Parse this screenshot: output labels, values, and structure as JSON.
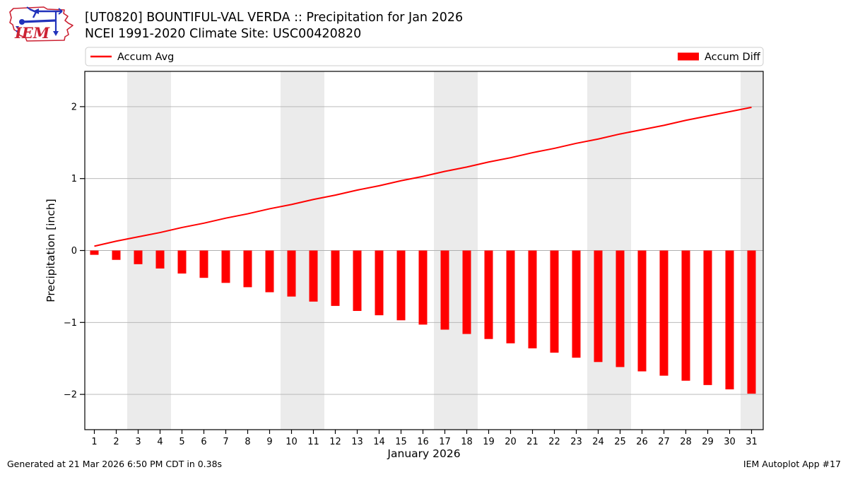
{
  "header": {
    "title": "[UT0820] BOUNTIFUL-VAL VERDA :: Precipitation for Jan 2026",
    "subtitle": "NCEI 1991-2020 Climate Site: USC00420820",
    "logo_text": "IEM"
  },
  "footer": {
    "generated": "Generated at 21 Mar 2026 6:50 PM CDT in 0.38s",
    "app": "IEM Autoplot App #17"
  },
  "chart_data": {
    "type": "line+bar",
    "x_days": [
      1,
      2,
      3,
      4,
      5,
      6,
      7,
      8,
      9,
      10,
      11,
      12,
      13,
      14,
      15,
      16,
      17,
      18,
      19,
      20,
      21,
      22,
      23,
      24,
      25,
      26,
      27,
      28,
      29,
      30,
      31
    ],
    "series": [
      {
        "name": "Accum Avg",
        "type": "line",
        "color": "#ff0000",
        "values": [
          0.06,
          0.13,
          0.19,
          0.25,
          0.32,
          0.38,
          0.45,
          0.51,
          0.58,
          0.64,
          0.71,
          0.77,
          0.84,
          0.9,
          0.97,
          1.03,
          1.1,
          1.16,
          1.23,
          1.29,
          1.36,
          1.42,
          1.49,
          1.55,
          1.62,
          1.68,
          1.74,
          1.81,
          1.87,
          1.93,
          1.99
        ]
      },
      {
        "name": "Accum Diff",
        "type": "bar",
        "color": "#ff0000",
        "values": [
          -0.06,
          -0.13,
          -0.19,
          -0.25,
          -0.32,
          -0.38,
          -0.45,
          -0.51,
          -0.58,
          -0.64,
          -0.71,
          -0.77,
          -0.84,
          -0.9,
          -0.97,
          -1.03,
          -1.1,
          -1.16,
          -1.23,
          -1.29,
          -1.36,
          -1.42,
          -1.49,
          -1.55,
          -1.62,
          -1.68,
          -1.74,
          -1.81,
          -1.87,
          -1.93,
          -1.99
        ]
      }
    ],
    "title": "[UT0820] BOUNTIFUL-VAL VERDA :: Precipitation for Jan 2026",
    "subtitle": "NCEI 1991-2020 Climate Site: USC00420820",
    "xlabel": "January 2026",
    "ylabel": "Precipitation [inch]",
    "ylim": [
      -2.5,
      2.5
    ],
    "yticks": [
      -2,
      -1,
      0,
      1,
      2
    ],
    "grid": true,
    "legend_position": "top full-width box, Accum Avg left / Accum Diff right",
    "weekend_bands_days": [
      [
        2.5,
        4.5
      ],
      [
        9.5,
        11.5
      ],
      [
        16.5,
        18.5
      ],
      [
        23.5,
        25.5
      ],
      [
        30.5,
        31.5
      ]
    ],
    "colors": {
      "accent": "#ff0000",
      "weekend_band": "#ebebeb",
      "grid": "#b0b0b0",
      "axis": "#000000",
      "legend_border": "#cccccc",
      "logo_red": "#cc2233",
      "logo_blue": "#2233bb"
    }
  }
}
